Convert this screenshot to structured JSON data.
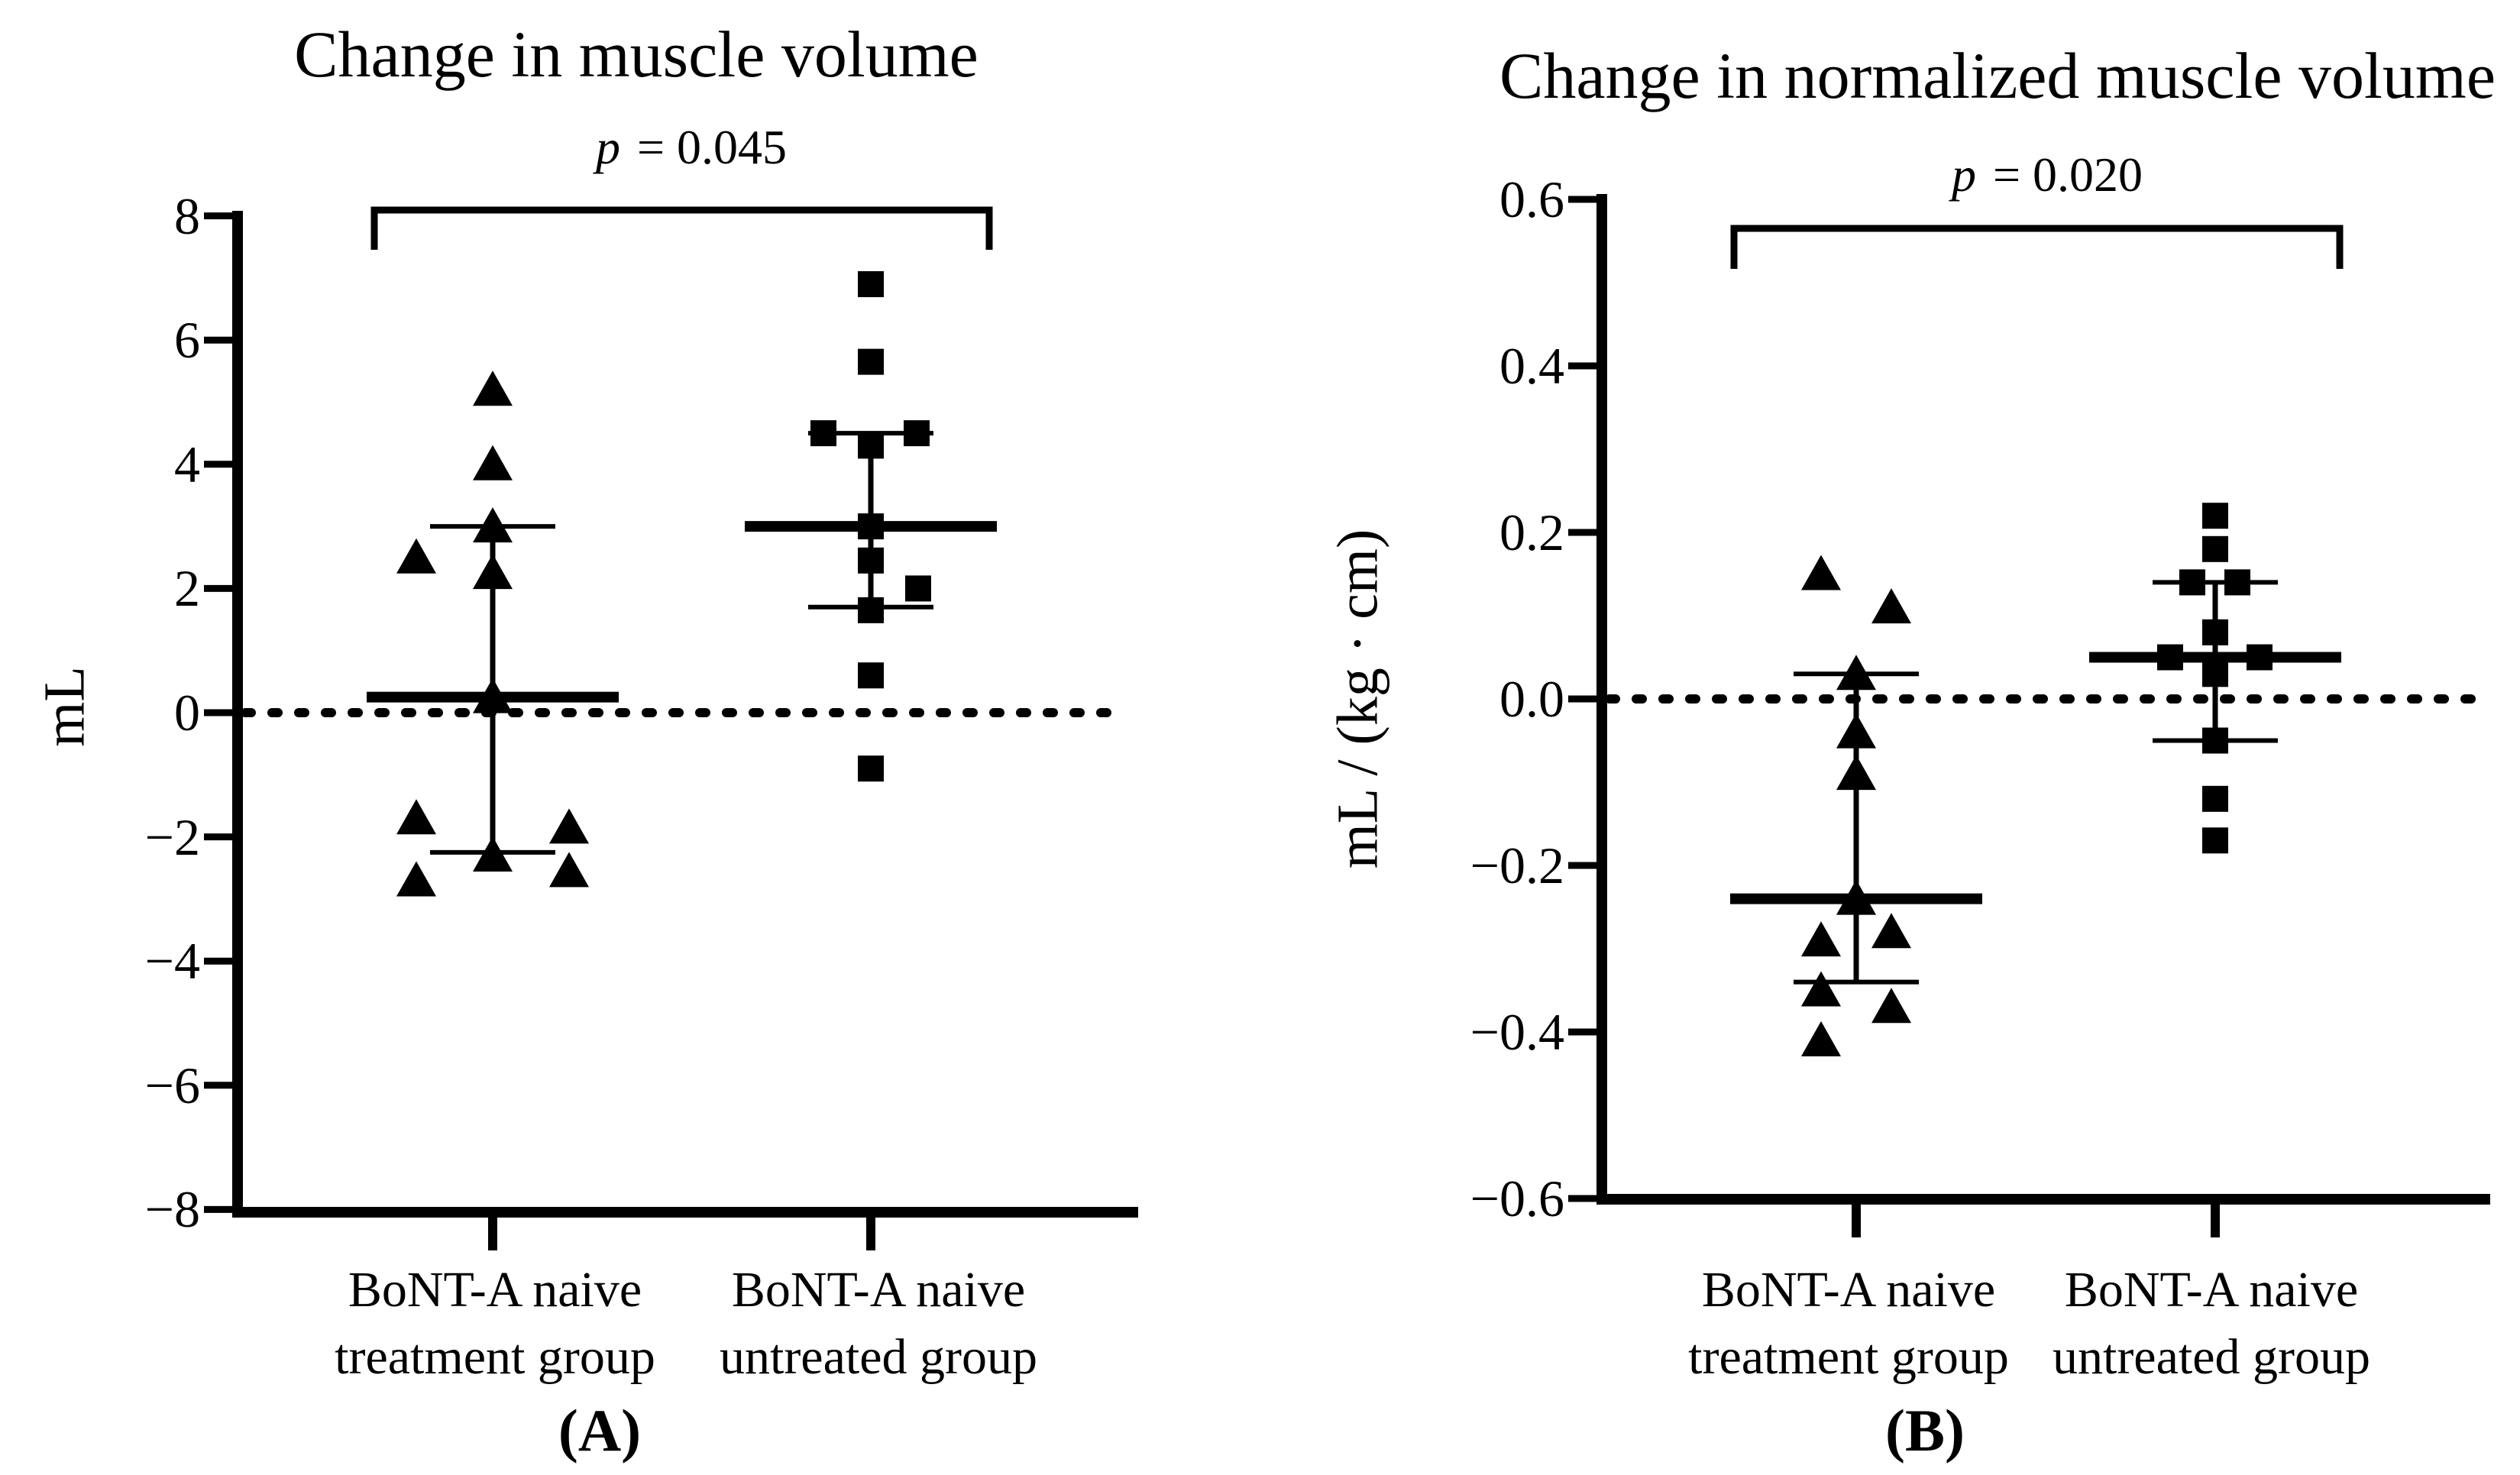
{
  "figure": {
    "background": "#ffffff",
    "ink": "#000000",
    "description": "Two-panel dot plot comparing change in muscle volume between BoNT-A naive treatment and untreated groups, with median and interquartile whiskers and a dotted zero reference line"
  },
  "chart_data": [
    {
      "type": "scatter",
      "panel_caption": "(A)",
      "title": "Change in muscle volume",
      "ylabel": "mL",
      "significance": {
        "variable": "p",
        "comparison": " = 0.045"
      },
      "ylim": [
        -8,
        8
      ],
      "grid": false,
      "legend_position": "none",
      "zero_reference_line": true,
      "yticks": [
        {
          "label": "8",
          "value": 8
        },
        {
          "label": "6",
          "value": 6
        },
        {
          "label": "4",
          "value": 4
        },
        {
          "label": "2",
          "value": 2
        },
        {
          "label": "0",
          "value": 0
        },
        {
          "label": "−2",
          "value": -2
        },
        {
          "label": "−4",
          "value": -4
        },
        {
          "label": "−6",
          "value": -6
        },
        {
          "label": "−8",
          "value": -8
        }
      ],
      "groups": [
        {
          "name": "BoNT-A naive treatment group",
          "label_lines": [
            "BoNT-A naive",
            "treatment group"
          ],
          "marker": "triangle",
          "points": [
            {
              "value": 5.2,
              "dx": 0
            },
            {
              "value": 4.0,
              "dx": 0
            },
            {
              "value": 3.0,
              "dx": 0
            },
            {
              "value": 2.5,
              "dx": -100
            },
            {
              "value": 2.25,
              "dx": 0
            },
            {
              "value": 0.25,
              "dx": 0
            },
            {
              "value": -1.7,
              "dx": -100
            },
            {
              "value": -1.85,
              "dx": 100
            },
            {
              "value": -2.3,
              "dx": 0
            },
            {
              "value": -2.55,
              "dx": 100
            },
            {
              "value": -2.7,
              "dx": -100
            }
          ],
          "median": 0.25,
          "q1": -2.25,
          "q3": 3.0
        },
        {
          "name": "BoNT-A naive untreated group",
          "label_lines": [
            "BoNT-A naive",
            "untreated group"
          ],
          "marker": "square",
          "points": [
            {
              "value": 6.9,
              "dx": 0
            },
            {
              "value": 5.65,
              "dx": 0
            },
            {
              "value": 4.5,
              "dx": -62
            },
            {
              "value": 4.5,
              "dx": 60
            },
            {
              "value": 4.3,
              "dx": 0
            },
            {
              "value": 3.0,
              "dx": 0
            },
            {
              "value": 2.45,
              "dx": 0
            },
            {
              "value": 2.0,
              "dx": 62
            },
            {
              "value": 1.65,
              "dx": 0
            },
            {
              "value": 0.6,
              "dx": 0
            },
            {
              "value": -0.9,
              "dx": 0
            }
          ],
          "median": 3.0,
          "q1": 1.7,
          "q3": 4.5
        }
      ]
    },
    {
      "type": "scatter",
      "panel_caption": "(B)",
      "title": "Change in normalized muscle volume",
      "ylabel": "mL / (kg · cm)",
      "significance": {
        "variable": "p",
        "comparison": " = 0.020"
      },
      "ylim": [
        -0.6,
        0.6
      ],
      "grid": false,
      "legend_position": "none",
      "zero_reference_line": true,
      "yticks": [
        {
          "label": "0.6",
          "value": 0.6
        },
        {
          "label": "0.4",
          "value": 0.4
        },
        {
          "label": "0.2",
          "value": 0.2
        },
        {
          "label": "0.0",
          "value": 0.0
        },
        {
          "label": "−0.2",
          "value": -0.2
        },
        {
          "label": "−0.4",
          "value": -0.4
        },
        {
          "label": "−0.6",
          "value": -0.6
        }
      ],
      "groups": [
        {
          "name": "BoNT-A naive treatment group",
          "label_lines": [
            "BoNT-A naive",
            "treatment group"
          ],
          "marker": "triangle",
          "points": [
            {
              "value": 0.15,
              "dx": -46
            },
            {
              "value": 0.11,
              "dx": 46
            },
            {
              "value": 0.03,
              "dx": 0
            },
            {
              "value": -0.04,
              "dx": 0
            },
            {
              "value": -0.09,
              "dx": 0
            },
            {
              "value": -0.24,
              "dx": 0
            },
            {
              "value": -0.29,
              "dx": -46
            },
            {
              "value": -0.28,
              "dx": 46
            },
            {
              "value": -0.35,
              "dx": -46
            },
            {
              "value": -0.37,
              "dx": 46
            },
            {
              "value": -0.41,
              "dx": -46
            }
          ],
          "median": -0.24,
          "q1": -0.34,
          "q3": 0.03
        },
        {
          "name": "BoNT-A naive untreated group",
          "label_lines": [
            "BoNT-A naive",
            "untreated group"
          ],
          "marker": "square",
          "points": [
            {
              "value": 0.22,
              "dx": 0
            },
            {
              "value": 0.18,
              "dx": 0
            },
            {
              "value": 0.14,
              "dx": -30
            },
            {
              "value": 0.14,
              "dx": 29
            },
            {
              "value": 0.08,
              "dx": 0
            },
            {
              "value": 0.05,
              "dx": -59
            },
            {
              "value": 0.05,
              "dx": 58
            },
            {
              "value": 0.03,
              "dx": 0
            },
            {
              "value": -0.05,
              "dx": 0
            },
            {
              "value": -0.12,
              "dx": 0
            },
            {
              "value": -0.17,
              "dx": 0
            }
          ],
          "median": 0.05,
          "q1": -0.05,
          "q3": 0.14
        }
      ]
    }
  ]
}
